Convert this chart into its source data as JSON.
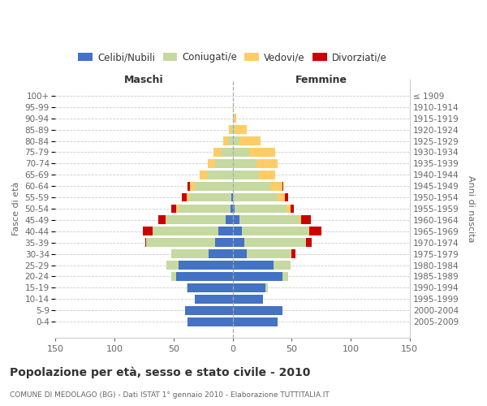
{
  "age_groups": [
    "100+",
    "95-99",
    "90-94",
    "85-89",
    "80-84",
    "75-79",
    "70-74",
    "65-69",
    "60-64",
    "55-59",
    "50-54",
    "45-49",
    "40-44",
    "35-39",
    "30-34",
    "25-29",
    "20-24",
    "15-19",
    "10-14",
    "5-9",
    "0-4"
  ],
  "birth_years": [
    "≤ 1909",
    "1910-1914",
    "1915-1919",
    "1920-1924",
    "1925-1929",
    "1930-1934",
    "1935-1939",
    "1940-1944",
    "1945-1949",
    "1950-1954",
    "1955-1959",
    "1960-1964",
    "1965-1969",
    "1970-1974",
    "1975-1979",
    "1980-1984",
    "1985-1989",
    "1990-1994",
    "1995-1999",
    "2000-2004",
    "2005-2009"
  ],
  "male_celibi": [
    0,
    0,
    0,
    0,
    0,
    0,
    0,
    0,
    0,
    1,
    2,
    6,
    12,
    15,
    20,
    46,
    48,
    38,
    32,
    40,
    38
  ],
  "male_coniugati": [
    0,
    0,
    0,
    1,
    4,
    10,
    15,
    22,
    32,
    36,
    44,
    50,
    56,
    58,
    32,
    10,
    4,
    1,
    0,
    0,
    0
  ],
  "male_vedovi": [
    0,
    0,
    0,
    2,
    4,
    6,
    6,
    6,
    4,
    2,
    2,
    1,
    0,
    0,
    0,
    0,
    0,
    0,
    0,
    0,
    0
  ],
  "male_divorziati": [
    0,
    0,
    0,
    0,
    0,
    0,
    0,
    0,
    2,
    4,
    4,
    6,
    8,
    1,
    0,
    0,
    0,
    0,
    0,
    0,
    0
  ],
  "female_nubili": [
    0,
    0,
    0,
    0,
    0,
    0,
    0,
    0,
    0,
    0,
    2,
    6,
    8,
    10,
    12,
    35,
    42,
    28,
    26,
    42,
    38
  ],
  "female_coniugate": [
    0,
    0,
    0,
    2,
    6,
    14,
    20,
    22,
    32,
    38,
    44,
    50,
    56,
    52,
    38,
    14,
    5,
    2,
    0,
    0,
    0
  ],
  "female_vedove": [
    0,
    1,
    3,
    10,
    18,
    22,
    18,
    14,
    10,
    6,
    3,
    2,
    1,
    0,
    0,
    0,
    0,
    0,
    0,
    0,
    0
  ],
  "female_divorziate": [
    0,
    0,
    0,
    0,
    0,
    0,
    0,
    0,
    1,
    3,
    3,
    8,
    10,
    5,
    3,
    0,
    0,
    0,
    0,
    0,
    0
  ],
  "color_celibi": "#4472C4",
  "color_coniugati": "#C5D9A0",
  "color_vedovi": "#FFCC66",
  "color_divorziati": "#CC0000",
  "xlim": 150,
  "title": "Popolazione per età, sesso e stato civile - 2010",
  "subtitle": "COMUNE DI MEDOLAGO (BG) - Dati ISTAT 1° gennaio 2010 - Elaborazione TUTTITALIA.IT",
  "ylabel_left": "Fasce di età",
  "ylabel_right": "Anni di nascita",
  "label_male": "Maschi",
  "label_female": "Femmine",
  "legend_labels": [
    "Celibi/Nubili",
    "Coniugati/e",
    "Vedovi/e",
    "Divorziati/e"
  ],
  "bg_color": "#ffffff",
  "grid_color": "#cccccc",
  "text_color_dark": "#333333",
  "text_color_mid": "#666666"
}
